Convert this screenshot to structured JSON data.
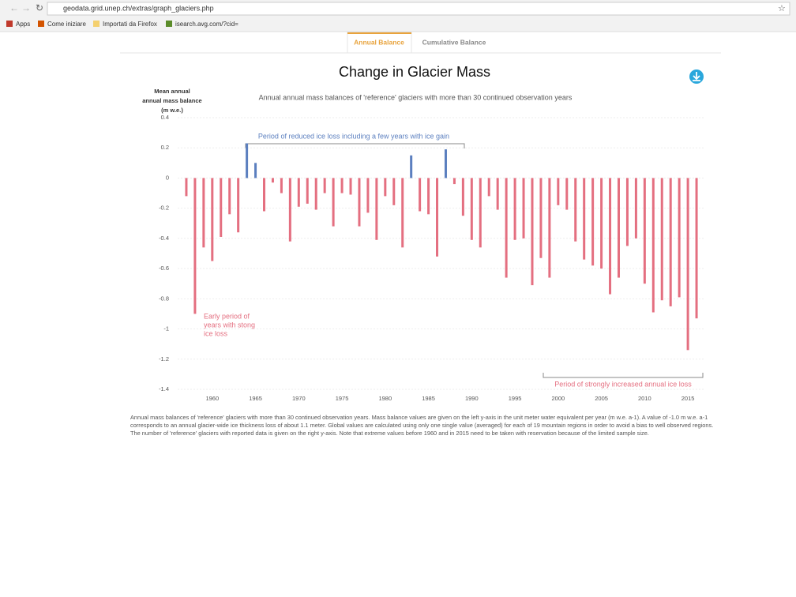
{
  "browser": {
    "url": "geodata.grid.unep.ch/extras/graph_glaciers.php",
    "bookmarks": [
      "Apps",
      "Come iniziare",
      "Importati da Firefox",
      "isearch.avg.com/?cid="
    ]
  },
  "tabs": [
    "Annual Balance",
    "Cumulative Balance"
  ],
  "chart_data": {
    "type": "bar",
    "title": "Change in Glacier Mass",
    "subtitle": "Annual annual mass balances of 'reference' glaciers with more than 30 continued observation years",
    "y_label": [
      "Mean annual",
      "annual mass balance",
      "(m w.e.)"
    ],
    "annotations": {
      "reduced": "Period of reduced ice loss including a few years with ice gain",
      "early": [
        "Early period of",
        "years with stong",
        "ice loss"
      ],
      "increased": "Period of strongly increased annual ice loss"
    },
    "x": [
      1957,
      1958,
      1959,
      1960,
      1961,
      1962,
      1963,
      1964,
      1965,
      1966,
      1967,
      1968,
      1969,
      1970,
      1971,
      1972,
      1973,
      1974,
      1975,
      1976,
      1977,
      1978,
      1979,
      1980,
      1981,
      1982,
      1983,
      1984,
      1985,
      1986,
      1987,
      1988,
      1989,
      1990,
      1991,
      1992,
      1993,
      1994,
      1995,
      1996,
      1997,
      1998,
      1999,
      2000,
      2001,
      2002,
      2003,
      2004,
      2005,
      2006,
      2007,
      2008,
      2009,
      2010,
      2011,
      2012,
      2013,
      2014,
      2015,
      2016
    ],
    "values": [
      -0.12,
      -0.9,
      -0.46,
      -0.55,
      -0.39,
      -0.24,
      -0.36,
      0.23,
      0.1,
      -0.22,
      -0.03,
      -0.1,
      -0.42,
      -0.19,
      -0.17,
      -0.21,
      -0.1,
      -0.32,
      -0.1,
      -0.11,
      -0.32,
      -0.23,
      -0.41,
      -0.12,
      -0.18,
      -0.46,
      0.15,
      -0.22,
      -0.24,
      -0.52,
      0.19,
      -0.04,
      -0.25,
      -0.41,
      -0.46,
      -0.12,
      -0.21,
      -0.66,
      -0.41,
      -0.4,
      -0.71,
      -0.53,
      -0.66,
      -0.18,
      -0.21,
      -0.42,
      -0.54,
      -0.58,
      -0.6,
      -0.77,
      -0.66,
      -0.45,
      -0.4,
      -0.7,
      -0.89,
      -0.81,
      -0.85,
      -0.79,
      -1.14,
      -0.93
    ],
    "positive_color": "#5b7fbf",
    "negative_color": "#e46f80",
    "xlim": [
      1956,
      2017
    ],
    "xticks": [
      1960,
      1965,
      1970,
      1975,
      1980,
      1985,
      1990,
      1995,
      2000,
      2005,
      2010,
      2015
    ],
    "ylim": [
      -1.4,
      0.4
    ],
    "yticks": [
      0.4,
      0.2,
      0,
      -0.2,
      -0.4,
      -0.6,
      -0.8,
      -1,
      -1.2,
      -1.4
    ],
    "grid": true
  },
  "caption": "Annual mass balances of 'reference' glaciers with more than 30 continued observation years. Mass balance values are given on the left y-axis in the unit meter water equivalent per year (m w.e. a-1). A value of -1.0 m w.e. a-1 corresponds to an annual glacier-wide ice thickness loss of about 1.1 meter. Global values are calculated using only one single value (averaged) for each of 19 mountain regions in order to avoid a bias to well observed regions. The number of 'reference' glaciers with reported data is given on the right y-axis. Note that extreme values before 1960 and in 2015 need to be taken with reservation because of the limited sample size."
}
